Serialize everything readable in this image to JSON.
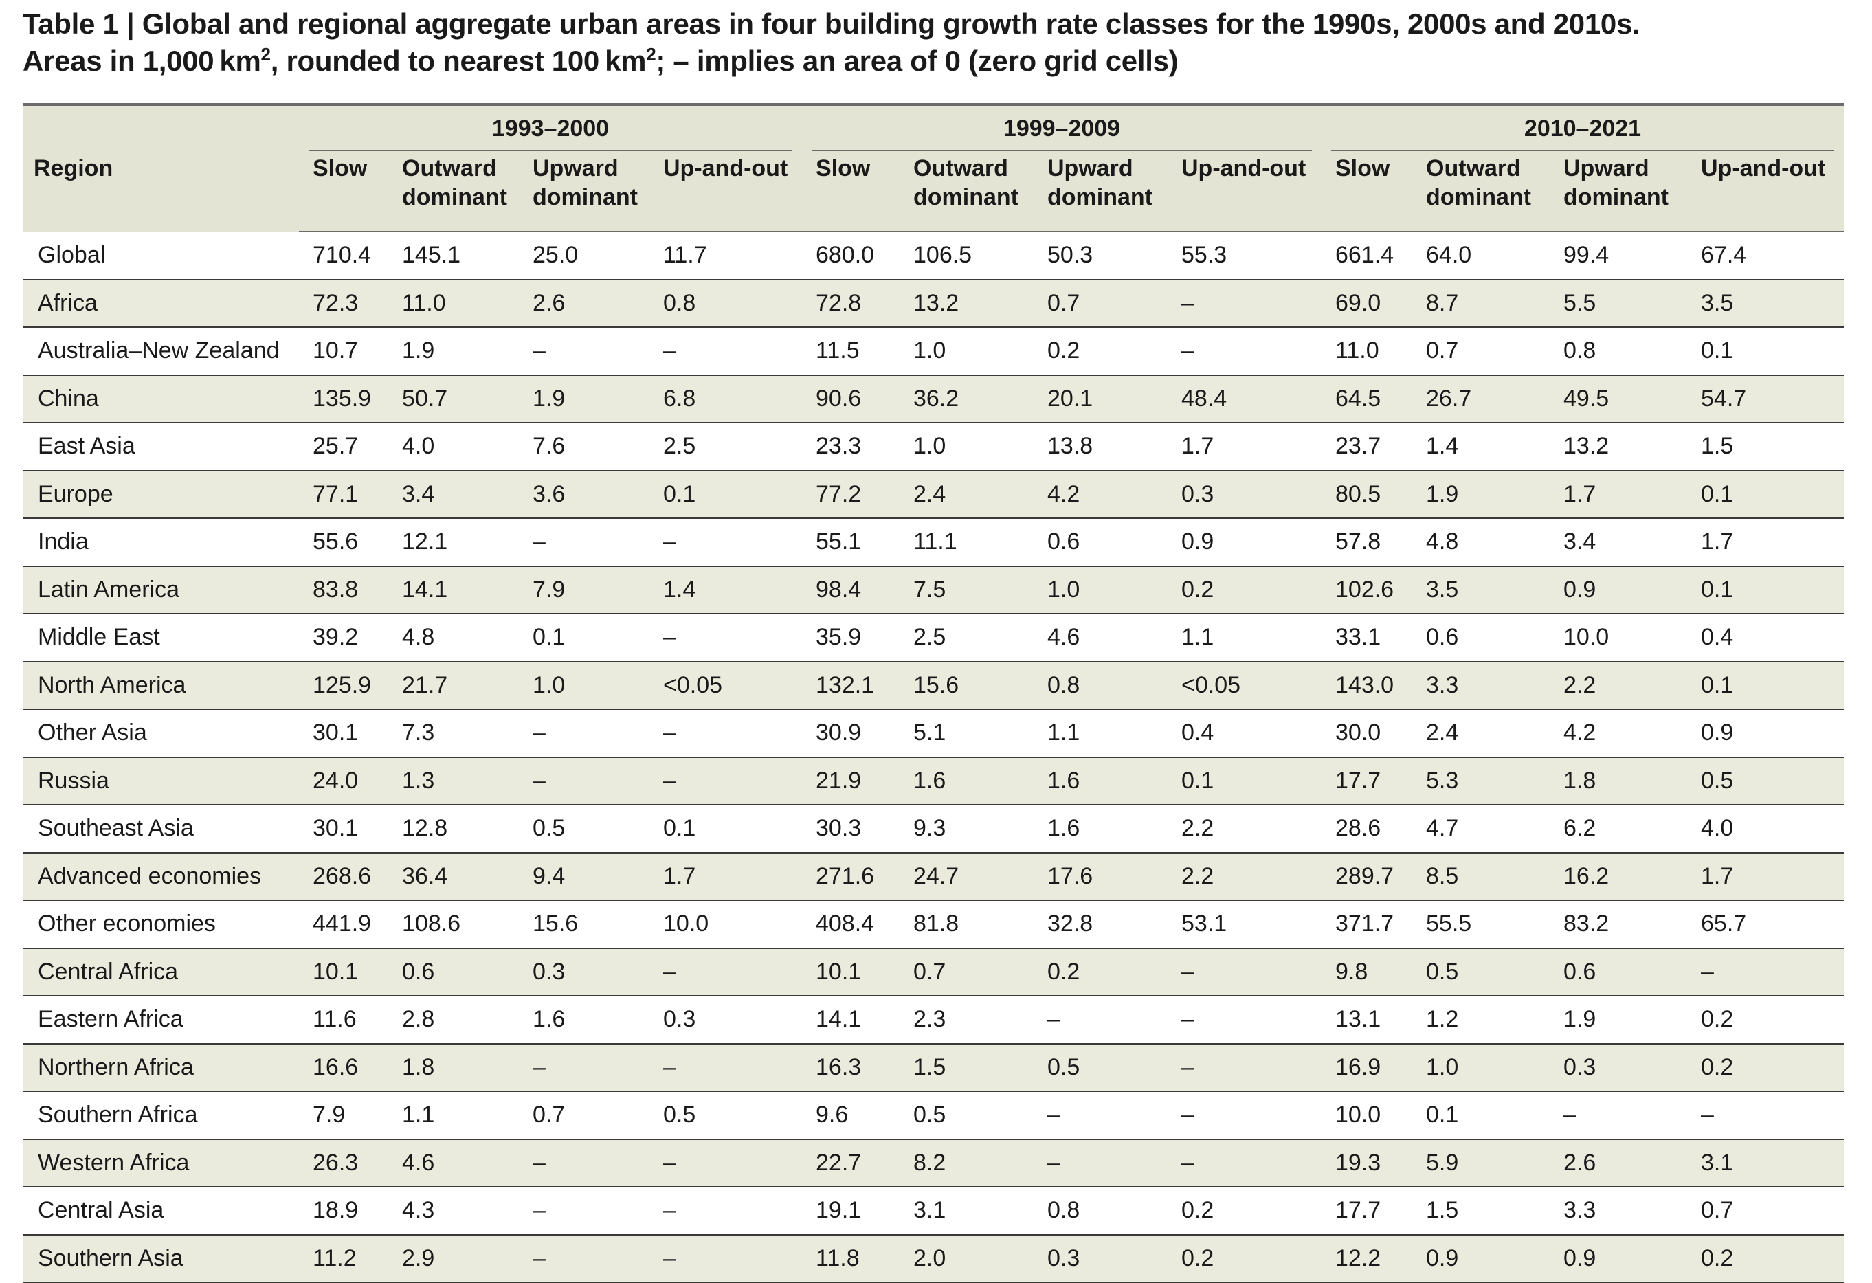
{
  "caption": {
    "line1": "Table 1 | Global and regional aggregate urban areas in four building growth rate classes for the 1990s, 2000s and 2010s.",
    "line2_a": "Areas in 1,000 km",
    "line2_sup1": "2",
    "line2_b": ", rounded to nearest 100 km",
    "line2_sup2": "2",
    "line2_c": "; – implies an area of 0 (zero grid cells)"
  },
  "header": {
    "region": "Region",
    "periods": [
      "1993–2000",
      "1999–2009",
      "2010–2021"
    ],
    "classes": [
      {
        "l1": "Slow",
        "l2": ""
      },
      {
        "l1": "Outward",
        "l2": "dominant"
      },
      {
        "l1": "Upward",
        "l2": "dominant"
      },
      {
        "l1": "Up-and-out",
        "l2": ""
      }
    ]
  },
  "rows": [
    {
      "region": "Global",
      "v": [
        "710.4",
        "145.1",
        "25.0",
        "11.7",
        "680.0",
        "106.5",
        "50.3",
        "55.3",
        "661.4",
        "64.0",
        "99.4",
        "67.4"
      ]
    },
    {
      "region": "Africa",
      "v": [
        "72.3",
        "11.0",
        "2.6",
        "0.8",
        "72.8",
        "13.2",
        "0.7",
        "–",
        "69.0",
        "8.7",
        "5.5",
        "3.5"
      ]
    },
    {
      "region": "Australia–New Zealand",
      "v": [
        "10.7",
        "1.9",
        "–",
        "–",
        "11.5",
        "1.0",
        "0.2",
        "–",
        "11.0",
        "0.7",
        "0.8",
        "0.1"
      ]
    },
    {
      "region": "China",
      "v": [
        "135.9",
        "50.7",
        "1.9",
        "6.8",
        "90.6",
        "36.2",
        "20.1",
        "48.4",
        "64.5",
        "26.7",
        "49.5",
        "54.7"
      ]
    },
    {
      "region": "East Asia",
      "v": [
        "25.7",
        "4.0",
        "7.6",
        "2.5",
        "23.3",
        "1.0",
        "13.8",
        "1.7",
        "23.7",
        "1.4",
        "13.2",
        "1.5"
      ]
    },
    {
      "region": "Europe",
      "v": [
        "77.1",
        "3.4",
        "3.6",
        "0.1",
        "77.2",
        "2.4",
        "4.2",
        "0.3",
        "80.5",
        "1.9",
        "1.7",
        "0.1"
      ]
    },
    {
      "region": "India",
      "v": [
        "55.6",
        "12.1",
        "–",
        "–",
        "55.1",
        "11.1",
        "0.6",
        "0.9",
        "57.8",
        "4.8",
        "3.4",
        "1.7"
      ]
    },
    {
      "region": "Latin America",
      "v": [
        "83.8",
        "14.1",
        "7.9",
        "1.4",
        "98.4",
        "7.5",
        "1.0",
        "0.2",
        "102.6",
        "3.5",
        "0.9",
        "0.1"
      ]
    },
    {
      "region": "Middle East",
      "v": [
        "39.2",
        "4.8",
        "0.1",
        "–",
        "35.9",
        "2.5",
        "4.6",
        "1.1",
        "33.1",
        "0.6",
        "10.0",
        "0.4"
      ]
    },
    {
      "region": "North America",
      "v": [
        "125.9",
        "21.7",
        "1.0",
        "<0.05",
        "132.1",
        "15.6",
        "0.8",
        "<0.05",
        "143.0",
        "3.3",
        "2.2",
        "0.1"
      ]
    },
    {
      "region": "Other Asia",
      "v": [
        "30.1",
        "7.3",
        "–",
        "–",
        "30.9",
        "5.1",
        "1.1",
        "0.4",
        "30.0",
        "2.4",
        "4.2",
        "0.9"
      ]
    },
    {
      "region": "Russia",
      "v": [
        "24.0",
        "1.3",
        "–",
        "–",
        "21.9",
        "1.6",
        "1.6",
        "0.1",
        "17.7",
        "5.3",
        "1.8",
        "0.5"
      ]
    },
    {
      "region": "Southeast Asia",
      "v": [
        "30.1",
        "12.8",
        "0.5",
        "0.1",
        "30.3",
        "9.3",
        "1.6",
        "2.2",
        "28.6",
        "4.7",
        "6.2",
        "4.0"
      ]
    },
    {
      "region": "Advanced economies",
      "v": [
        "268.6",
        "36.4",
        "9.4",
        "1.7",
        "271.6",
        "24.7",
        "17.6",
        "2.2",
        "289.7",
        "8.5",
        "16.2",
        "1.7"
      ]
    },
    {
      "region": "Other economies",
      "v": [
        "441.9",
        "108.6",
        "15.6",
        "10.0",
        "408.4",
        "81.8",
        "32.8",
        "53.1",
        "371.7",
        "55.5",
        "83.2",
        "65.7"
      ]
    },
    {
      "region": "Central Africa",
      "v": [
        "10.1",
        "0.6",
        "0.3",
        "–",
        "10.1",
        "0.7",
        "0.2",
        "–",
        "9.8",
        "0.5",
        "0.6",
        "–"
      ]
    },
    {
      "region": "Eastern Africa",
      "v": [
        "11.6",
        "2.8",
        "1.6",
        "0.3",
        "14.1",
        "2.3",
        "–",
        "–",
        "13.1",
        "1.2",
        "1.9",
        "0.2"
      ]
    },
    {
      "region": "Northern Africa",
      "v": [
        "16.6",
        "1.8",
        "–",
        "–",
        "16.3",
        "1.5",
        "0.5",
        "–",
        "16.9",
        "1.0",
        "0.3",
        "0.2"
      ]
    },
    {
      "region": "Southern Africa",
      "v": [
        "7.9",
        "1.1",
        "0.7",
        "0.5",
        "9.6",
        "0.5",
        "–",
        "–",
        "10.0",
        "0.1",
        "–",
        "–"
      ]
    },
    {
      "region": "Western Africa",
      "v": [
        "26.3",
        "4.6",
        "–",
        "–",
        "22.7",
        "8.2",
        "–",
        "–",
        "19.3",
        "5.9",
        "2.6",
        "3.1"
      ]
    },
    {
      "region": "Central Asia",
      "v": [
        "18.9",
        "4.3",
        "–",
        "–",
        "19.1",
        "3.1",
        "0.8",
        "0.2",
        "17.7",
        "1.5",
        "3.3",
        "0.7"
      ]
    },
    {
      "region": "Southern Asia",
      "v": [
        "11.2",
        "2.9",
        "–",
        "–",
        "11.8",
        "2.0",
        "0.3",
        "0.2",
        "12.2",
        "0.9",
        "0.9",
        "0.2"
      ]
    }
  ]
}
